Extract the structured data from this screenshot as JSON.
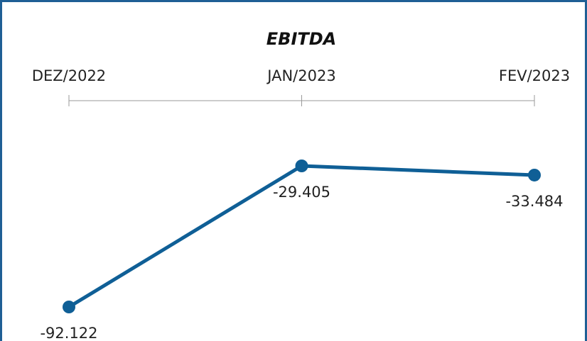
{
  "chart_data": {
    "type": "line",
    "title": "EBITDA",
    "categories": [
      "DEZ/2022",
      "JAN/2023",
      "FEV/2023"
    ],
    "series": [
      {
        "values": [
          -92122,
          -29405,
          -33484
        ],
        "labels": [
          "-92.122",
          "-29.405",
          "-33.484"
        ]
      }
    ],
    "xlabel": "",
    "ylabel": "",
    "ylim": [
      -92122,
      -29405
    ],
    "x_axis_position": "top",
    "grid": false,
    "legend": "none"
  },
  "colors": {
    "series": "#0f5f96",
    "frame": "#1f5f95"
  }
}
